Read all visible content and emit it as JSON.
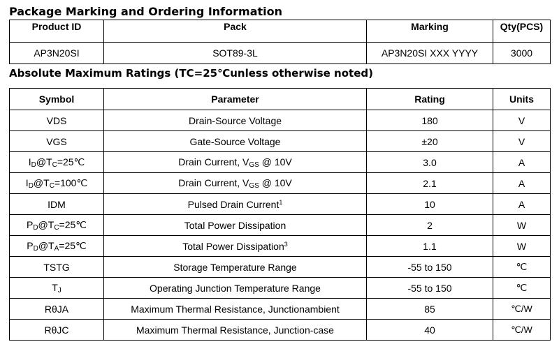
{
  "section1": {
    "title": "Package Marking and Ordering Information",
    "headers": [
      "Product ID",
      "Pack",
      "Marking",
      "Qty(PCS)"
    ],
    "row": [
      "AP3N20SI",
      "SOT89-3L",
      "AP3N20SI XXX YYYY",
      "3000"
    ]
  },
  "section2": {
    "title": "Absolute Maximum Ratings (TC=25℃unless otherwise noted)",
    "headers": [
      "Symbol",
      "Parameter",
      "Rating",
      "Units"
    ],
    "rows": [
      {
        "symbol": "VDS",
        "parameter": "Drain-Source Voltage",
        "rating": "180",
        "unit": "V"
      },
      {
        "symbol": "VGS",
        "parameter": "Gate-Source Voltage",
        "rating": "±20",
        "unit": "V"
      },
      {
        "symbol_main": "I",
        "symbol_sub": "D",
        "symbol_mid": "@T",
        "symbol_sub2": "C",
        "symbol_end": "=25℃",
        "param_pre": "Drain Current, V",
        "param_sub": "GS",
        "param_post": " @ 10V",
        "rating": "3.0",
        "unit": "A"
      },
      {
        "symbol_main": "I",
        "symbol_sub": "D",
        "symbol_mid": "@T",
        "symbol_sub2": "C",
        "symbol_end": "=100℃",
        "param_pre": "Drain Current, V",
        "param_sub": "GS",
        "param_post": " @ 10V",
        "rating": "2.1",
        "unit": "A"
      },
      {
        "symbol": "IDM",
        "param_pre": "Pulsed Drain Current",
        "param_sup": "1",
        "rating": "10",
        "unit": "A"
      },
      {
        "symbol_main": "P",
        "symbol_sub": "D",
        "symbol_mid": "@T",
        "symbol_sub2": "C",
        "symbol_end": "=25℃",
        "parameter": "Total Power Dissipation",
        "rating": "2",
        "unit": "W"
      },
      {
        "symbol_main": "P",
        "symbol_sub": "D",
        "symbol_mid": "@T",
        "symbol_sub2": "A",
        "symbol_end": "=25℃",
        "param_pre": "Total Power Dissipation",
        "param_sup": "3",
        "rating": "1.1",
        "unit": "W"
      },
      {
        "symbol": "TSTG",
        "parameter": "Storage Temperature Range",
        "rating": "-55 to 150",
        "unit": "℃"
      },
      {
        "symbol_main": "T",
        "symbol_sub": "J",
        "parameter": "Operating Junction Temperature Range",
        "rating": "-55 to 150",
        "unit": "℃"
      },
      {
        "symbol": "RθJA",
        "parameter": "Maximum Thermal Resistance, Junctionambient",
        "rating": "85",
        "unit": "℃/W"
      },
      {
        "symbol": "RθJC",
        "parameter": "Maximum Thermal Resistance, Junction-case",
        "rating": "40",
        "unit": "℃/W"
      }
    ]
  }
}
